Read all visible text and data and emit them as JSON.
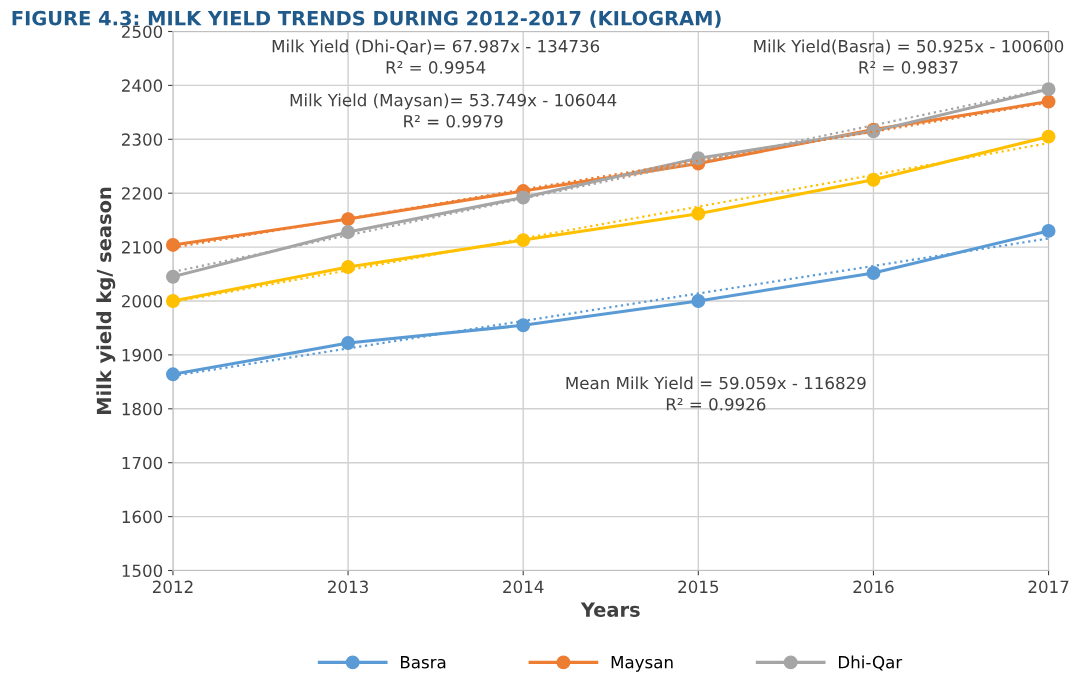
{
  "chart_data": {
    "type": "line",
    "title": "FIGURE 4.3: MILK YIELD TRENDS DURING 2012-2017 (KILOGRAM)",
    "xlabel": "Years",
    "ylabel": "Milk yield kg/ season",
    "x": [
      2012,
      2013,
      2014,
      2015,
      2016,
      2017
    ],
    "series": [
      {
        "name": "Basra",
        "color": "#5b9bd5",
        "values": [
          1864,
          1922,
          1955,
          2000,
          2052,
          2130
        ]
      },
      {
        "name": "Maysan",
        "color": "#ed7d31",
        "values": [
          2104,
          2152,
          2204,
          2255,
          2318,
          2370
        ]
      },
      {
        "name": "Dhi-Qar",
        "color": "#a5a5a5",
        "values": [
          2045,
          2128,
          2192,
          2265,
          2315,
          2393
        ]
      },
      {
        "color": "#ffc000",
        "values": [
          2000,
          2063,
          2113,
          2162,
          2225,
          2305
        ]
      },
      {
        "color": "#5b9bd5",
        "values": [
          1861,
          1912,
          1963,
          2014,
          2065,
          2116
        ],
        "marker": "none",
        "line_style": "dotted"
      },
      {
        "color": "#ed7d31",
        "values": [
          2099,
          2153,
          2207,
          2260,
          2314,
          2368
        ],
        "marker": "none",
        "line_style": "dotted"
      },
      {
        "color": "#a5a5a5",
        "values": [
          2054,
          2122,
          2190,
          2258,
          2326,
          2394
        ],
        "marker": "none",
        "line_style": "dotted"
      },
      {
        "color": "#ffc000",
        "values": [
          1998,
          2057,
          2116,
          2175,
          2234,
          2293
        ],
        "marker": "none",
        "line_style": "dotted"
      }
    ],
    "marker": "circle",
    "line_style": "solid",
    "xlim": [
      2012,
      2017
    ],
    "xticks": [
      2012,
      2013,
      2014,
      2015,
      2016,
      2017
    ],
    "ylim": [
      1500,
      2500
    ],
    "yticks": [
      1500,
      1600,
      1700,
      1800,
      1900,
      2000,
      2100,
      2200,
      2300,
      2400,
      2500
    ],
    "grid": true,
    "legend": "bottom",
    "annotations": [
      "Milk Yield (Dhi-Qar)= 67.987x - 134736\nR² = 0.9954",
      "Milk Yield (Maysan)= 53.749x - 106044\nR² = 0.9979",
      "Milk Yield(Basra) = 50.925x - 100600\nR² = 0.9837",
      "Mean Milk Yield = 59.059x - 116829\nR² = 0.9926"
    ]
  }
}
